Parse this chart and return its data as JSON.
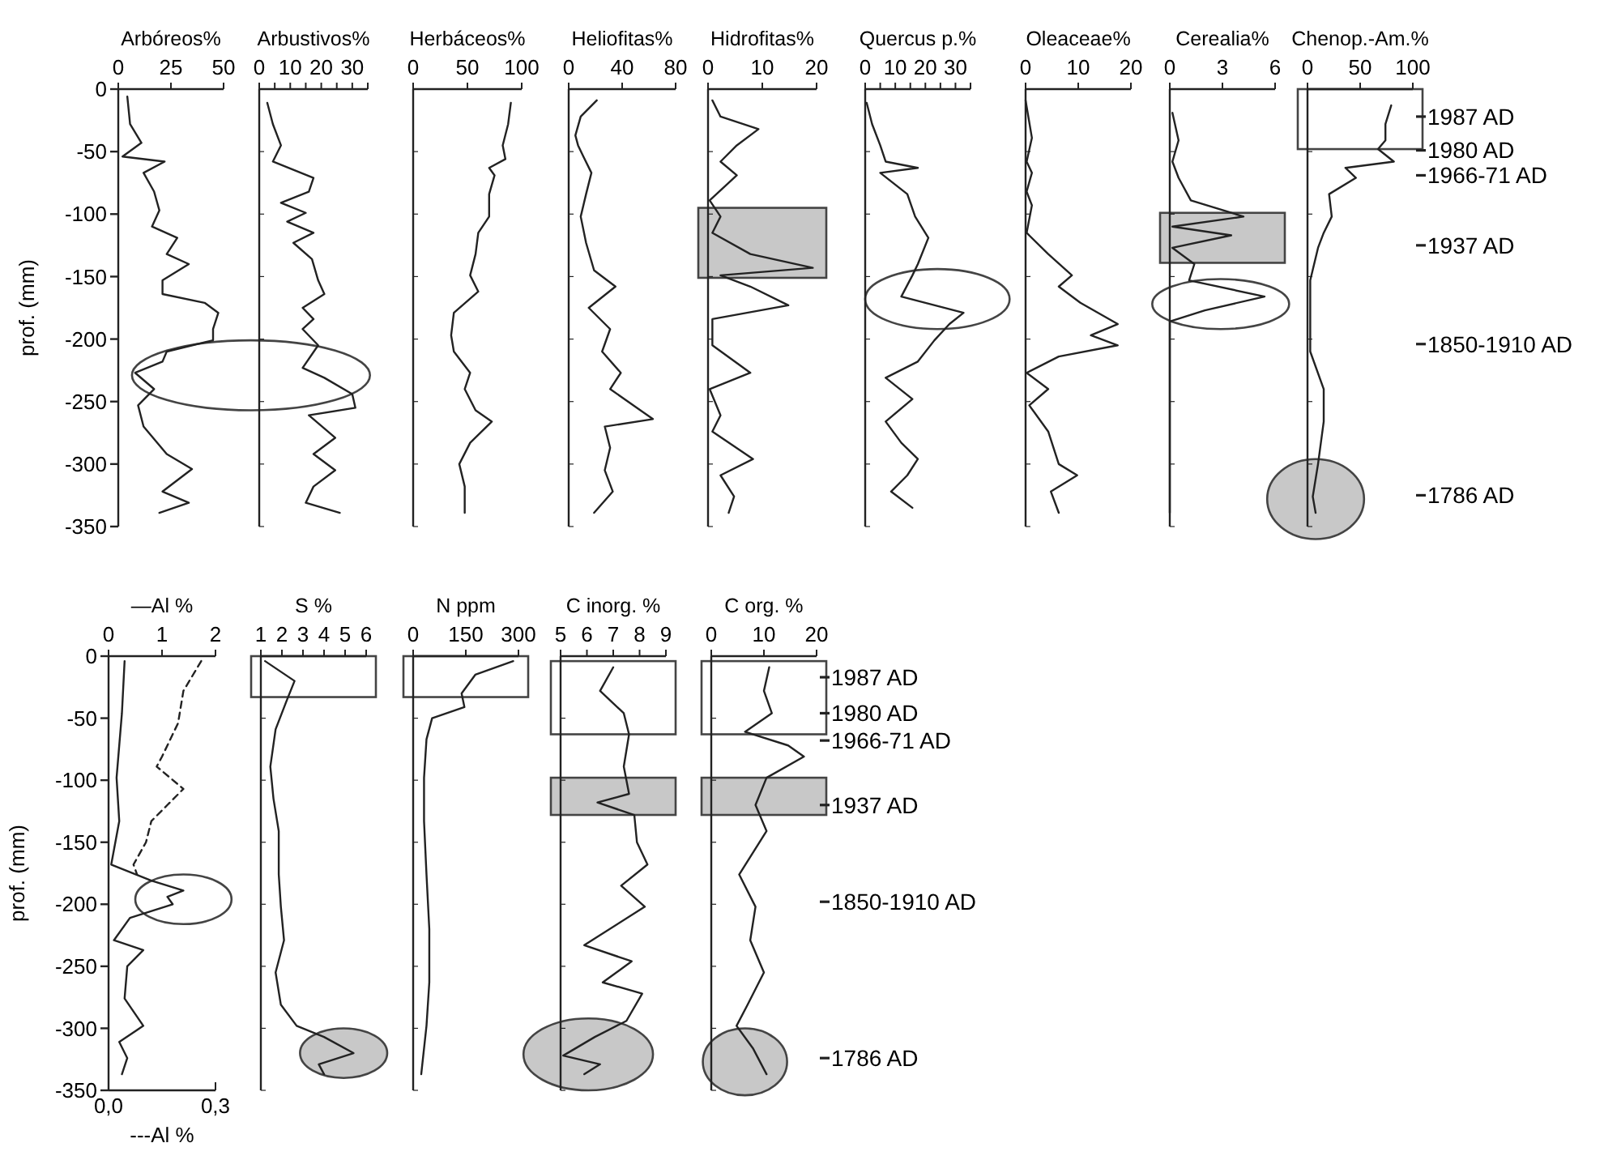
{
  "chart_data": [
    {
      "type": "line",
      "xlabel": "Arbóreos%",
      "xlim": [
        0,
        50
      ],
      "xticks": [
        0,
        25,
        50
      ],
      "ylabel": "prof. (mm)",
      "ylim": [
        -350,
        0
      ],
      "yticks": [
        0,
        -50,
        -100,
        -150,
        -200,
        -250,
        -300,
        -350
      ],
      "series": [
        {
          "color": "#222222",
          "x": [
            4.3,
            5.6,
            11,
            2,
            22,
            12,
            17,
            19.5,
            16,
            28,
            23,
            33.5,
            21,
            21,
            41,
            47.5,
            45,
            45,
            23,
            21,
            8,
            17,
            9.4,
            12,
            23,
            35,
            21,
            33.5,
            19.5
          ],
          "values": [
            -6,
            -28,
            -43,
            -54,
            -58,
            -67,
            -82,
            -97,
            -110,
            -119,
            -132,
            -140,
            -153,
            -164,
            -171,
            -179,
            -192,
            -201,
            -210,
            -218,
            -227,
            -240,
            -253,
            -270,
            -292,
            -304,
            -322,
            -331,
            -339
          ]
        }
      ]
    },
    {
      "type": "line",
      "xlabel": "Arbustivos%",
      "xlim": [
        0,
        35
      ],
      "xticks": [
        0,
        {
          "value": 5,
          "label": null
        },
        10,
        {
          "value": 15,
          "label": null
        },
        20,
        {
          "value": 25,
          "label": null
        },
        30,
        {
          "value": 35,
          "label": null
        }
      ],
      "ylim": [
        -350,
        0
      ],
      "yticks": [
        0,
        -50,
        -100,
        -150,
        -200,
        -250,
        -300,
        -350
      ],
      "tick_labels": "x",
      "series": [
        {
          "color": "#222222",
          "x": [
            2.6,
            4.4,
            7,
            4.4,
            17.5,
            16,
            7,
            15,
            9,
            17.5,
            11,
            17,
            19,
            21,
            14,
            17.5,
            14,
            19,
            14,
            21,
            30,
            31,
            16,
            24.5,
            17.5,
            24.5,
            17.5,
            15,
            26
          ],
          "values": [
            -11,
            -28,
            -45,
            -58,
            -71,
            -82,
            -91,
            -99,
            -106,
            -115,
            -123,
            -136,
            -153,
            -164,
            -175,
            -184,
            -192,
            -205,
            -223,
            -231,
            -244,
            -255,
            -261,
            -279,
            -292,
            -305,
            -318,
            -331,
            -339
          ]
        }
      ]
    },
    {
      "type": "line",
      "xlabel": "Herbáceos%",
      "xlim": [
        0,
        100
      ],
      "xticks": [
        0,
        50,
        100
      ],
      "ylim": [
        -350,
        0
      ],
      "yticks": [
        0,
        -50,
        -100,
        -150,
        -200,
        -250,
        -300,
        -350
      ],
      "tick_labels": "x",
      "series": [
        {
          "color": "#222222",
          "x": [
            90,
            87.5,
            82.5,
            85,
            70,
            75,
            70,
            70,
            60,
            57.5,
            52.5,
            60,
            37.5,
            35,
            37.5,
            52.5,
            47.5,
            57.5,
            72.5,
            52.5,
            42.5,
            47.5,
            47.5
          ],
          "values": [
            -11,
            -28,
            -45,
            -56,
            -63,
            -69,
            -84,
            -102,
            -115,
            -132,
            -149,
            -162,
            -179,
            -197,
            -210,
            -227,
            -240,
            -257,
            -266,
            -283,
            -300,
            -318,
            -339
          ]
        }
      ]
    },
    {
      "type": "line",
      "xlabel": "Heliofitas%",
      "xlim": [
        0,
        80
      ],
      "xticks": [
        0,
        40,
        80
      ],
      "ylim": [
        -350,
        0
      ],
      "yticks": [
        0,
        -50,
        -100,
        -150,
        -200,
        -250,
        -300,
        -350
      ],
      "tick_labels": "x",
      "series": [
        {
          "color": "#222222",
          "x": [
            21,
            9,
            5,
            7,
            11,
            17,
            13,
            9,
            13,
            19,
            35,
            15,
            31,
            25,
            39,
            31,
            63,
            27,
            31,
            27,
            33,
            19
          ],
          "values": [
            -9,
            -22,
            -37,
            -45,
            -54,
            -67,
            -84,
            -102,
            -123,
            -145,
            -158,
            -175,
            -192,
            -210,
            -227,
            -240,
            -264,
            -270,
            -287,
            -305,
            -322,
            -339
          ]
        }
      ]
    },
    {
      "type": "line",
      "xlabel": "Hidrofitas%",
      "xlim": [
        0,
        20
      ],
      "xticks": [
        0,
        10,
        20
      ],
      "ylim": [
        -350,
        0
      ],
      "yticks": [
        0,
        -50,
        -100,
        -150,
        -200,
        -250,
        -300,
        -350
      ],
      "tick_labels": "x",
      "bands": [
        {
          "axis": "y",
          "from": -95,
          "to": -151,
          "color": "#c8c8c8"
        }
      ],
      "series": [
        {
          "color": "#222222",
          "x": [
            0.8,
            2.3,
            9.3,
            5.3,
            2.3,
            5.3,
            0.3,
            2.3,
            0.8,
            7.8,
            19.3,
            2.3,
            7.8,
            14.8,
            0.8,
            0.8,
            7.8,
            0.3,
            2.3,
            0.8,
            8.3,
            2.3,
            4.8,
            3.8
          ],
          "values": [
            -9,
            -22,
            -32,
            -45,
            -58,
            -69,
            -89,
            -102,
            -115,
            -132,
            -143,
            -149,
            -158,
            -173,
            -184,
            -205,
            -227,
            -240,
            -261,
            -274,
            -296,
            -309,
            -326,
            -339
          ]
        }
      ]
    },
    {
      "type": "line",
      "xlabel": "Quercus p.%",
      "xlim": [
        0,
        35
      ],
      "xticks": [
        0,
        {
          "value": 5,
          "label": null
        },
        10,
        {
          "value": 15,
          "label": null
        },
        20,
        {
          "value": 25,
          "label": null
        },
        30,
        {
          "value": 35,
          "label": null
        }
      ],
      "ylim": [
        -350,
        0
      ],
      "yticks": [
        0,
        -50,
        -100,
        -150,
        -200,
        -250,
        -300,
        -350
      ],
      "tick_labels": "x",
      "series": [
        {
          "color": "#222222",
          "x": [
            0.5,
            2.3,
            5,
            6.8,
            17.5,
            5,
            14,
            16.6,
            21,
            17.5,
            15.7,
            12,
            32.7,
            28,
            23,
            17.5,
            6.8,
            15.7,
            6.8,
            12,
            17.5,
            14,
            8.6,
            15.7
          ],
          "values": [
            -11,
            -28,
            -45,
            -58,
            -63,
            -67,
            -84,
            -102,
            -119,
            -140,
            -149,
            -166,
            -179,
            -188,
            -201,
            -218,
            -231,
            -248,
            -266,
            -283,
            -296,
            -309,
            -322,
            -335
          ]
        }
      ]
    },
    {
      "type": "line",
      "xlabel": "Oleaceae%",
      "xlim": [
        0,
        20
      ],
      "xticks": [
        0,
        10,
        20
      ],
      "ylim": [
        -350,
        0
      ],
      "yticks": [
        0,
        -50,
        -100,
        -150,
        -200,
        -250,
        -300,
        -350
      ],
      "tick_labels": "x",
      "series": [
        {
          "color": "#222222",
          "x": [
            0,
            1.2,
            0.2,
            1.2,
            0.2,
            1.2,
            0.2,
            4.3,
            8.8,
            6.3,
            10.4,
            17.5,
            12.4,
            17.5,
            6.3,
            0.2,
            4.3,
            0.7,
            4.3,
            6.3,
            9.8,
            4.8,
            6.3
          ],
          "values": [
            -9,
            -39,
            -58,
            -67,
            -82,
            -93,
            -115,
            -132,
            -149,
            -158,
            -171,
            -188,
            -197,
            -205,
            -214,
            -227,
            -240,
            -253,
            -274,
            -300,
            -309,
            -322,
            -339
          ]
        }
      ]
    },
    {
      "type": "line",
      "xlabel": "Cerealia%",
      "xlim": [
        0,
        6
      ],
      "xticks": [
        0,
        3,
        6
      ],
      "ylim": [
        -350,
        0
      ],
      "yticks": [
        0,
        -50,
        -100,
        -150,
        -200,
        -250,
        -300,
        -350
      ],
      "tick_labels": "x",
      "bands": [
        {
          "axis": "y",
          "from": -99,
          "to": -139,
          "color": "#c8c8c8"
        }
      ],
      "series": [
        {
          "color": "#222222",
          "x": [
            0.15,
            0.5,
            0.15,
            0.5,
            1.2,
            4.2,
            0.15,
            3.5,
            0.15,
            1.4,
            1.1,
            5.4,
            2,
            0,
            0,
            0
          ],
          "values": [
            -19,
            -41,
            -58,
            -71,
            -89,
            -102,
            -110,
            -117,
            -127,
            -140,
            -153,
            -166,
            -177,
            -186,
            -210,
            -339
          ]
        }
      ]
    },
    {
      "type": "line",
      "xlabel": "Chenop.-Am.%",
      "xlim": [
        0,
        100
      ],
      "xticks": [
        0,
        50,
        100
      ],
      "ylim": [
        -350,
        0
      ],
      "yticks": [
        0,
        -50,
        -100,
        -150,
        -200,
        -250,
        -300,
        -350
      ],
      "tick_labels": "x",
      "ref_lines": [
        {
          "axis": "y",
          "value": -22,
          "label": "1987 AD"
        },
        {
          "axis": "y",
          "value": -49,
          "label": "1980 AD"
        },
        {
          "axis": "y",
          "value": -69,
          "label": "1966-71 AD"
        },
        {
          "axis": "y",
          "value": -125,
          "label": "1937 AD"
        },
        {
          "axis": "y",
          "value": -204,
          "label": "1850-1910 AD"
        },
        {
          "axis": "y",
          "value": -325,
          "label": "1786 AD"
        }
      ],
      "bands": [
        {
          "axis": "y",
          "from": 0,
          "to": -48,
          "color": "#ffffff"
        }
      ],
      "series": [
        {
          "color": "#222222",
          "x": [
            79.5,
            74,
            74,
            67,
            82,
            36,
            46,
            20.5,
            23,
            15.4,
            10,
            2.6,
            2.6,
            15.4,
            15.4,
            10,
            5,
            7.7
          ],
          "values": [
            -13,
            -28,
            -41,
            -48,
            -58,
            -63,
            -71,
            -84,
            -102,
            -115,
            -127,
            -153,
            -210,
            -240,
            -266,
            -300,
            -326,
            -339
          ]
        }
      ]
    },
    {
      "type": "line",
      "xlabel": "—Al %",
      "xlim": [
        0,
        2
      ],
      "xticks": [
        0,
        1,
        2
      ],
      "x2label": "---Al %",
      "x2lim": [
        0,
        0.3
      ],
      "x2ticks": [
        {
          "value": 0,
          "label": "0,0"
        },
        {
          "value": 0.3,
          "label": "0,3"
        }
      ],
      "ylabel": "prof. (mm)",
      "ylim": [
        -350,
        0
      ],
      "yticks": [
        0,
        -50,
        -100,
        -150,
        -200,
        -250,
        -300,
        -350
      ],
      "series": [
        {
          "color": "#222222",
          "line_style": "solid",
          "x": [
            0.3,
            0.25,
            0.15,
            0.2,
            0.05,
            0.8,
            1.4,
            1.1,
            1.2,
            0.4,
            0.1,
            0.65,
            0.35,
            0.3,
            0.65,
            0.2,
            0.35,
            0.25
          ],
          "values": [
            -4,
            -46,
            -98,
            -133,
            -168,
            -181,
            -189,
            -194,
            -200,
            -211,
            -229,
            -237,
            -250,
            -276,
            -298,
            -311,
            -324,
            -337
          ]
        },
        {
          "axis": "x2",
          "color": "#222222",
          "line_style": "dashed",
          "x": [
            0.26,
            0.21,
            0.195,
            0.15,
            0.135,
            0.21,
            0.165,
            0.12,
            0.105,
            0.07,
            0.08
          ],
          "values": [
            -4,
            -28,
            -54,
            -81,
            -89,
            -107,
            -120,
            -133,
            -150,
            -168,
            -176
          ]
        }
      ]
    },
    {
      "type": "line",
      "xlabel": "S %",
      "xlim": [
        1,
        6
      ],
      "xticks": [
        1,
        2,
        3,
        4,
        5,
        6
      ],
      "ylim": [
        -350,
        0
      ],
      "yticks": [
        0,
        -50,
        -100,
        -150,
        -200,
        -250,
        -300,
        -350
      ],
      "tick_labels": "x",
      "bands": [
        {
          "axis": "y",
          "from": 0,
          "to": -33,
          "color": "#ffffff"
        }
      ],
      "series": [
        {
          "color": "#222222",
          "x": [
            1.2,
            2.6,
            2.2,
            1.7,
            1.45,
            1.6,
            1.85,
            1.85,
            1.95,
            2.1,
            1.7,
            1.95,
            2.7,
            4,
            5.4,
            3.75,
            4
          ],
          "values": [
            -4,
            -20,
            -37,
            -59,
            -89,
            -115,
            -141,
            -176,
            -202,
            -229,
            -255,
            -281,
            -298,
            -307,
            -320,
            -329,
            -337
          ]
        }
      ]
    },
    {
      "type": "line",
      "xlabel": "N ppm",
      "xlim": [
        0,
        300
      ],
      "xticks": [
        0,
        150,
        300
      ],
      "ylim": [
        -350,
        0
      ],
      "yticks": [
        0,
        -50,
        -100,
        -150,
        -200,
        -250,
        -300,
        -350
      ],
      "tick_labels": "x",
      "bands": [
        {
          "axis": "y",
          "from": 0,
          "to": -33,
          "color": "#ffffff"
        }
      ],
      "series": [
        {
          "color": "#222222",
          "x": [
            285,
            177,
            138,
            146,
            54,
            38,
            31,
            31,
            38,
            46,
            46,
            38,
            23
          ],
          "values": [
            -4,
            -15,
            -30,
            -41,
            -50,
            -67,
            -98,
            -133,
            -176,
            -220,
            -263,
            -298,
            -337
          ]
        }
      ]
    },
    {
      "type": "line",
      "xlabel": "C inorg. %",
      "xlim": [
        5,
        9
      ],
      "xticks": [
        5,
        6,
        7,
        8,
        9
      ],
      "ylim": [
        -350,
        0
      ],
      "yticks": [
        0,
        -50,
        -100,
        -150,
        -200,
        -250,
        -300,
        -350
      ],
      "tick_labels": "x",
      "bands": [
        {
          "axis": "y",
          "from": -4,
          "to": -63,
          "color": "#ffffff"
        },
        {
          "axis": "y",
          "from": -98,
          "to": -128,
          "color": "#c8c8c8"
        }
      ],
      "series": [
        {
          "color": "#222222",
          "x": [
            7,
            6.5,
            7.4,
            7.6,
            7.4,
            7.6,
            6.4,
            7.8,
            7.9,
            8.3,
            7.3,
            8.2,
            5.9,
            7.7,
            6.6,
            8.1,
            7.5,
            6.3,
            5.1,
            6.5,
            5.9
          ],
          "values": [
            -9,
            -28,
            -46,
            -63,
            -89,
            -111,
            -118,
            -128,
            -150,
            -168,
            -185,
            -202,
            -233,
            -246,
            -263,
            -272,
            -294,
            -307,
            -322,
            -329,
            -337
          ]
        }
      ]
    },
    {
      "type": "line",
      "xlabel": "C org. %",
      "xlim": [
        0,
        20
      ],
      "xticks": [
        0,
        10,
        20
      ],
      "ylim": [
        -350,
        0
      ],
      "yticks": [
        0,
        -50,
        -100,
        -150,
        -200,
        -250,
        -300,
        -350
      ],
      "tick_labels": "x",
      "ref_lines": [
        {
          "axis": "y",
          "value": -17,
          "label": "1987 AD"
        },
        {
          "axis": "y",
          "value": -46,
          "label": "1980 AD"
        },
        {
          "axis": "y",
          "value": -68,
          "label": "1966-71 AD"
        },
        {
          "axis": "y",
          "value": -120,
          "label": "1937 AD"
        },
        {
          "axis": "y",
          "value": -198,
          "label": "1850-1910 AD"
        },
        {
          "axis": "y",
          "value": -324,
          "label": "1786 AD"
        }
      ],
      "bands": [
        {
          "axis": "y",
          "from": -4,
          "to": -63,
          "color": "#ffffff"
        },
        {
          "axis": "y",
          "from": -98,
          "to": -128,
          "color": "#c8c8c8"
        }
      ],
      "series": [
        {
          "color": "#222222",
          "x": [
            11,
            10,
            11.5,
            6.4,
            14.6,
            17.6,
            10.5,
            8.4,
            10.5,
            5.3,
            8.4,
            7.4,
            10,
            6.9,
            4.8,
            7.9,
            10.5
          ],
          "values": [
            -9,
            -28,
            -46,
            -61,
            -72,
            -81,
            -98,
            -120,
            -141,
            -176,
            -202,
            -229,
            -255,
            -281,
            -298,
            -316,
            -337
          ]
        }
      ]
    }
  ]
}
